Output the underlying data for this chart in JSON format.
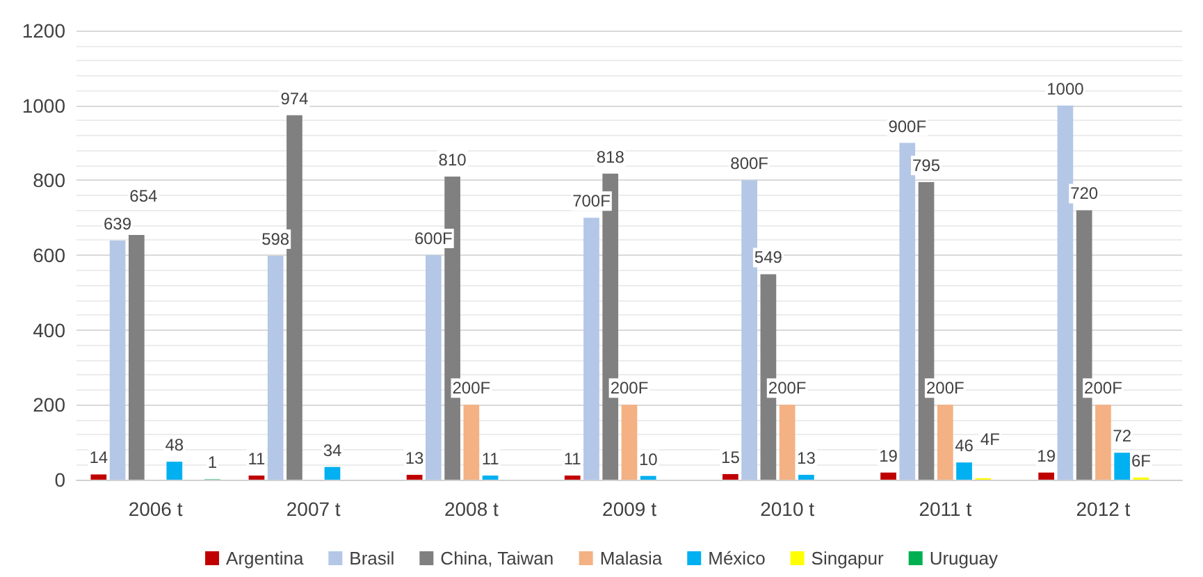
{
  "chart_data": {
    "type": "bar",
    "categories": [
      "2006 t",
      "2007 t",
      "2008 t",
      "2009 t",
      "2010 t",
      "2011 t",
      "2012 t"
    ],
    "series": [
      {
        "name": "Argentina",
        "color": "#c00000",
        "values": [
          14,
          11,
          13,
          11,
          15,
          19,
          19
        ],
        "value_labels": [
          "14",
          "11",
          "13",
          "11",
          "15",
          "19",
          "19"
        ]
      },
      {
        "name": "Brasil",
        "color": "#b4c7e7",
        "values": [
          639,
          598,
          600,
          700,
          800,
          900,
          1000
        ],
        "value_labels": [
          "639",
          "598",
          "600F",
          "700F",
          "800F",
          "900F",
          "1000"
        ]
      },
      {
        "name": "China, Taiwan",
        "color": "#808080",
        "values": [
          654,
          974,
          810,
          818,
          549,
          795,
          720
        ],
        "value_labels": [
          "654",
          "974",
          "810",
          "818",
          "549",
          "795",
          "720"
        ]
      },
      {
        "name": "Malasia",
        "color": "#f4b183",
        "values": [
          null,
          null,
          200,
          200,
          200,
          200,
          200
        ],
        "value_labels": [
          null,
          null,
          "200F",
          "200F",
          "200F",
          "200F",
          "200F"
        ]
      },
      {
        "name": "México",
        "color": "#00b0f0",
        "values": [
          48,
          34,
          11,
          10,
          13,
          46,
          72
        ],
        "value_labels": [
          "48",
          "34",
          "11",
          "10",
          "13",
          "46",
          "72"
        ]
      },
      {
        "name": "Singapur",
        "color": "#ffff00",
        "values": [
          null,
          null,
          null,
          null,
          null,
          4,
          6
        ],
        "value_labels": [
          null,
          null,
          null,
          null,
          null,
          "4F",
          "6F"
        ]
      },
      {
        "name": "Uruguay",
        "color": "#00b050",
        "values": [
          1,
          null,
          null,
          null,
          null,
          null,
          null
        ],
        "value_labels": [
          "1",
          null,
          null,
          null,
          null,
          null,
          null
        ]
      }
    ],
    "ylim": [
      0,
      1200
    ],
    "yticks": [
      0,
      200,
      400,
      600,
      800,
      1000,
      1200
    ],
    "grid": "y",
    "legend": "bottom"
  }
}
